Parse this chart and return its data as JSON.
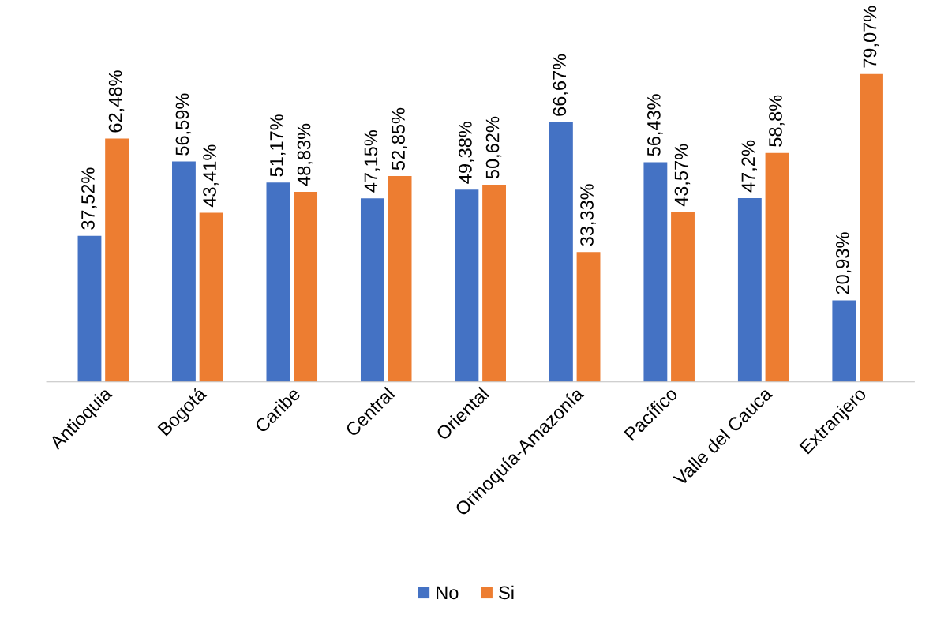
{
  "chart_data": {
    "type": "bar",
    "categories": [
      "Antioquia",
      "Bogotá",
      "Caribe",
      "Central",
      "Oriental",
      "Orinoquía-Amazonía",
      "Pacífico",
      "Valle del Cauca",
      "Extranjero"
    ],
    "series": [
      {
        "name": "No",
        "color": "#4472c4",
        "values": [
          37.52,
          56.59,
          51.17,
          47.15,
          49.38,
          66.67,
          56.43,
          47.2,
          20.93
        ],
        "value_labels": [
          "37,52%",
          "56,59%",
          "51,17%",
          "47,15%",
          "49,38%",
          "66,67%",
          "56,43%",
          "47,2%",
          "20,93%"
        ]
      },
      {
        "name": "Si",
        "color": "#ed7d31",
        "values": [
          62.48,
          43.41,
          48.83,
          52.85,
          50.62,
          33.33,
          43.57,
          58.8,
          79.07
        ],
        "value_labels": [
          "62,48%",
          "43,41%",
          "48,83%",
          "52,85%",
          "50,62%",
          "33,33%",
          "43,57%",
          "58,8%",
          "79,07%"
        ]
      }
    ],
    "legend": "bottom",
    "grid": false,
    "tick_labels": "x"
  }
}
